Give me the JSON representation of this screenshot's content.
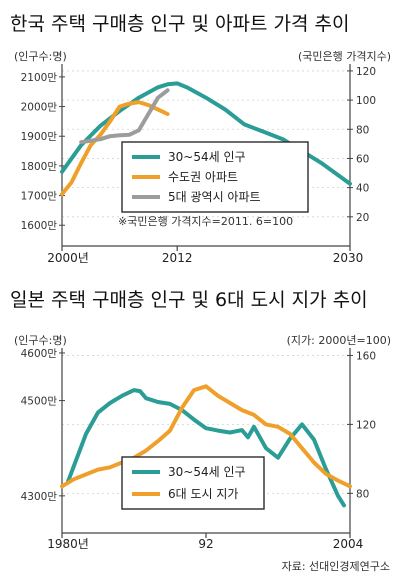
{
  "colors": {
    "teal": "#2a9d96",
    "orange": "#f0a02a",
    "gray": "#9c9c9c",
    "axis": "#444444",
    "grid": "#d4d4d4"
  },
  "source": "자료: 선대인경제연구소",
  "chart_data": [
    {
      "type": "line",
      "title": "한국 주택 구매층 인구 및 아파트 가격 추이",
      "left_axis_label": "(인구수:명)",
      "right_axis_label": "(국민은행 가격지수)",
      "note": "※국민은행 가격지수=2011. 6=100",
      "left_ticks": [
        "2100만",
        "2000만",
        "1900만",
        "1800만",
        "1700만",
        "1600만"
      ],
      "left_tick_values": [
        2100,
        2000,
        1900,
        1800,
        1700,
        1600
      ],
      "right_ticks": [
        "120",
        "100",
        "80",
        "60",
        "40",
        "20"
      ],
      "right_tick_values": [
        120,
        100,
        80,
        60,
        40,
        20
      ],
      "x_ticks": [
        "2000년",
        "2012",
        "2030"
      ],
      "x_tick_values": [
        2000,
        2012,
        2030
      ],
      "xlim": [
        2000,
        2030
      ],
      "left_ylim": [
        1530,
        2130
      ],
      "right_ylim": [
        0,
        122
      ],
      "legend": [
        "30~54세 인구",
        "수도권 아파트",
        "5대 광역시 아파트"
      ],
      "series": [
        {
          "name": "30~54세 인구",
          "axis": "left",
          "color_key": "teal",
          "x": [
            2000,
            2002,
            2004,
            2006,
            2008,
            2010,
            2011,
            2012,
            2013,
            2015,
            2017,
            2019,
            2021,
            2023,
            2025,
            2027,
            2030
          ],
          "y": [
            1780,
            1870,
            1935,
            1985,
            2030,
            2065,
            2075,
            2078,
            2065,
            2030,
            1990,
            1940,
            1915,
            1890,
            1850,
            1810,
            1740
          ]
        },
        {
          "name": "수도권 아파트",
          "axis": "left",
          "color_key": "orange",
          "x": [
            2000,
            2001,
            2002,
            2003,
            2004,
            2005,
            2006,
            2007,
            2008,
            2009,
            2010,
            2011
          ],
          "y": [
            1705,
            1745,
            1810,
            1870,
            1905,
            1950,
            2000,
            2010,
            2015,
            2005,
            1990,
            1975
          ]
        },
        {
          "name": "5대 광역시 아파트",
          "axis": "left",
          "color_key": "gray",
          "x": [
            2002,
            2003,
            2004,
            2005,
            2006,
            2007,
            2008,
            2009,
            2010,
            2011
          ],
          "y": [
            1880,
            1885,
            1890,
            1900,
            1903,
            1905,
            1920,
            1975,
            2030,
            2055
          ]
        }
      ]
    },
    {
      "type": "line",
      "title": "일본 주택 구매층 인구 및 6대 도시 지가 추이",
      "left_axis_label": "(인구수:명)",
      "right_axis_label": "(지가: 2000년=100)",
      "left_ticks": [
        "4600만",
        "4500만",
        "4300만"
      ],
      "left_tick_values": [
        4600,
        4500,
        4300
      ],
      "right_ticks": [
        "160",
        "120",
        "80"
      ],
      "right_tick_values": [
        160,
        120,
        80
      ],
      "x_ticks": [
        "1980년",
        "92",
        "2004"
      ],
      "x_tick_values": [
        1980,
        1992,
        2004
      ],
      "xlim": [
        1980,
        2004
      ],
      "left_ylim": [
        4222,
        4602
      ],
      "right_ylim": [
        57,
        162
      ],
      "legend": [
        "30~54세 인구",
        "6대 도시 지가"
      ],
      "series": [
        {
          "name": "30~54세 인구",
          "axis": "left",
          "color_key": "teal",
          "x": [
            1980.5,
            1982,
            1983,
            1984,
            1985,
            1986,
            1986.5,
            1987,
            1988,
            1989,
            1990,
            1991,
            1992,
            1993,
            1994,
            1995,
            1995.5,
            1996,
            1997,
            1998,
            1999,
            2000,
            2001,
            2002,
            2003,
            2003.5
          ],
          "y": [
            4330,
            4430,
            4475,
            4495,
            4510,
            4522,
            4520,
            4505,
            4497,
            4493,
            4480,
            4460,
            4442,
            4437,
            4433,
            4438,
            4423,
            4445,
            4400,
            4380,
            4420,
            4450,
            4418,
            4356,
            4300,
            4280
          ]
        },
        {
          "name": "6대 도시 지가",
          "axis": "left",
          "color_key": "orange",
          "x": [
            1980,
            1981,
            1982,
            1983,
            1984,
            1985,
            1986,
            1987,
            1988,
            1989,
            1990,
            1991,
            1992,
            1993,
            1994,
            1995,
            1996,
            1997,
            1998,
            1999,
            2000,
            2001,
            2002,
            2003,
            2004
          ],
          "y": [
            4320,
            4335,
            4345,
            4355,
            4360,
            4370,
            4380,
            4395,
            4415,
            4437,
            4485,
            4522,
            4530,
            4510,
            4495,
            4480,
            4470,
            4450,
            4445,
            4430,
            4400,
            4370,
            4346,
            4332,
            4320
          ]
        }
      ]
    }
  ]
}
